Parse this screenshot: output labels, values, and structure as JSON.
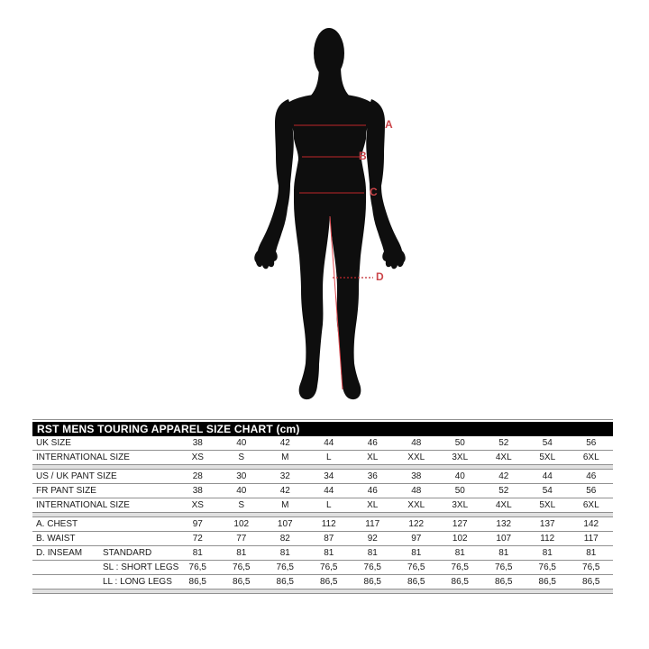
{
  "figure": {
    "silhouette_color": "#0e0e0e",
    "line_color": "#c1272d",
    "label_color": "#cb4449",
    "markers": [
      {
        "label": "A",
        "measure": "chest"
      },
      {
        "label": "B",
        "measure": "waist"
      },
      {
        "label": "C",
        "measure": "hip"
      },
      {
        "label": "D",
        "measure": "inseam"
      }
    ]
  },
  "table": {
    "title": "RST MENS TOURING APPAREL SIZE CHART (cm)",
    "title_bg": "#000000",
    "title_color": "#ffffff",
    "groups": [
      {
        "rows": [
          {
            "label": "UK SIZE",
            "sublabel": "",
            "values": [
              "38",
              "40",
              "42",
              "44",
              "46",
              "48",
              "50",
              "52",
              "54",
              "56"
            ]
          },
          {
            "label": "INTERNATIONAL SIZE",
            "sublabel": "",
            "values": [
              "XS",
              "S",
              "M",
              "L",
              "XL",
              "XXL",
              "3XL",
              "4XL",
              "5XL",
              "6XL"
            ]
          }
        ]
      },
      {
        "rows": [
          {
            "label": "US / UK PANT SIZE",
            "sublabel": "",
            "values": [
              "28",
              "30",
              "32",
              "34",
              "36",
              "38",
              "40",
              "42",
              "44",
              "46"
            ]
          },
          {
            "label": "FR PANT SIZE",
            "sublabel": "",
            "values": [
              "38",
              "40",
              "42",
              "44",
              "46",
              "48",
              "50",
              "52",
              "54",
              "56"
            ]
          },
          {
            "label": "INTERNATIONAL SIZE",
            "sublabel": "",
            "values": [
              "XS",
              "S",
              "M",
              "L",
              "XL",
              "XXL",
              "3XL",
              "4XL",
              "5XL",
              "6XL"
            ]
          }
        ]
      },
      {
        "rows": [
          {
            "label": "A. CHEST",
            "sublabel": "",
            "values": [
              "97",
              "102",
              "107",
              "112",
              "117",
              "122",
              "127",
              "132",
              "137",
              "142"
            ]
          },
          {
            "label": "B. WAIST",
            "sublabel": "",
            "values": [
              "72",
              "77",
              "82",
              "87",
              "92",
              "97",
              "102",
              "107",
              "112",
              "117"
            ]
          },
          {
            "label": "D. INSEAM",
            "sublabel": "STANDARD",
            "values": [
              "81",
              "81",
              "81",
              "81",
              "81",
              "81",
              "81",
              "81",
              "81",
              "81"
            ]
          },
          {
            "label": "",
            "sublabel": "SL : SHORT LEGS",
            "values": [
              "76,5",
              "76,5",
              "76,5",
              "76,5",
              "76,5",
              "76,5",
              "76,5",
              "76,5",
              "76,5",
              "76,5"
            ]
          },
          {
            "label": "",
            "sublabel": "LL : LONG LEGS",
            "values": [
              "86,5",
              "86,5",
              "86,5",
              "86,5",
              "86,5",
              "86,5",
              "86,5",
              "86,5",
              "86,5",
              "86,5"
            ]
          }
        ]
      }
    ]
  },
  "chart_data": {
    "type": "table",
    "title": "RST MENS TOURING APPAREL SIZE CHART (cm)",
    "columns": [
      "38/XS",
      "40/S",
      "42/M",
      "44/L",
      "46/XL",
      "48/XXL",
      "50/3XL",
      "52/4XL",
      "54/5XL",
      "56/6XL"
    ],
    "rows": [
      {
        "name": "UK SIZE",
        "values": [
          38,
          40,
          42,
          44,
          46,
          48,
          50,
          52,
          54,
          56
        ]
      },
      {
        "name": "INTERNATIONAL SIZE",
        "values": [
          "XS",
          "S",
          "M",
          "L",
          "XL",
          "XXL",
          "3XL",
          "4XL",
          "5XL",
          "6XL"
        ]
      },
      {
        "name": "US / UK PANT SIZE",
        "values": [
          28,
          30,
          32,
          34,
          36,
          38,
          40,
          42,
          44,
          46
        ]
      },
      {
        "name": "FR PANT SIZE",
        "values": [
          38,
          40,
          42,
          44,
          46,
          48,
          50,
          52,
          54,
          56
        ]
      },
      {
        "name": "INTERNATIONAL SIZE",
        "values": [
          "XS",
          "S",
          "M",
          "L",
          "XL",
          "XXL",
          "3XL",
          "4XL",
          "5XL",
          "6XL"
        ]
      },
      {
        "name": "A. CHEST",
        "values": [
          97,
          102,
          107,
          112,
          117,
          122,
          127,
          132,
          137,
          142
        ]
      },
      {
        "name": "B. WAIST",
        "values": [
          72,
          77,
          82,
          87,
          92,
          97,
          102,
          107,
          112,
          117
        ]
      },
      {
        "name": "D. INSEAM STANDARD",
        "values": [
          81,
          81,
          81,
          81,
          81,
          81,
          81,
          81,
          81,
          81
        ]
      },
      {
        "name": "D. INSEAM SL : SHORT LEGS",
        "values": [
          76.5,
          76.5,
          76.5,
          76.5,
          76.5,
          76.5,
          76.5,
          76.5,
          76.5,
          76.5
        ]
      },
      {
        "name": "D. INSEAM LL : LONG LEGS",
        "values": [
          86.5,
          86.5,
          86.5,
          86.5,
          86.5,
          86.5,
          86.5,
          86.5,
          86.5,
          86.5
        ]
      }
    ]
  }
}
